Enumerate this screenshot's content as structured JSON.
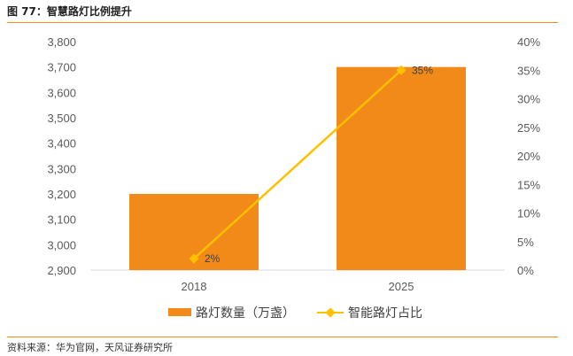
{
  "figure": {
    "title": "图 77：智慧路灯比例提升",
    "source": "资料来源：华为官网，天风证券研究所"
  },
  "colors": {
    "bar": "#F28A1A",
    "line": "#FFC000",
    "accent_rule": "#F28A1A"
  },
  "chart_data": {
    "type": "bar",
    "categories": [
      "2018",
      "2025"
    ],
    "series": [
      {
        "name": "路灯数量（万盏）",
        "kind": "bar",
        "axis": "left",
        "values": [
          3200,
          3700
        ]
      },
      {
        "name": "智能路灯占比",
        "kind": "line",
        "axis": "right",
        "values": [
          2,
          35
        ],
        "labels": [
          "2%",
          "35%"
        ]
      }
    ],
    "y_left": {
      "lim": [
        2900,
        3800
      ],
      "ticks": [
        "2,900",
        "3,000",
        "3,100",
        "3,200",
        "3,300",
        "3,400",
        "3,500",
        "3,600",
        "3,700",
        "3,800"
      ]
    },
    "y_right": {
      "lim": [
        0,
        40
      ],
      "ticks": [
        "0%",
        "5%",
        "10%",
        "15%",
        "20%",
        "25%",
        "30%",
        "35%",
        "40%"
      ]
    },
    "grid": false,
    "legend_position": "bottom"
  }
}
